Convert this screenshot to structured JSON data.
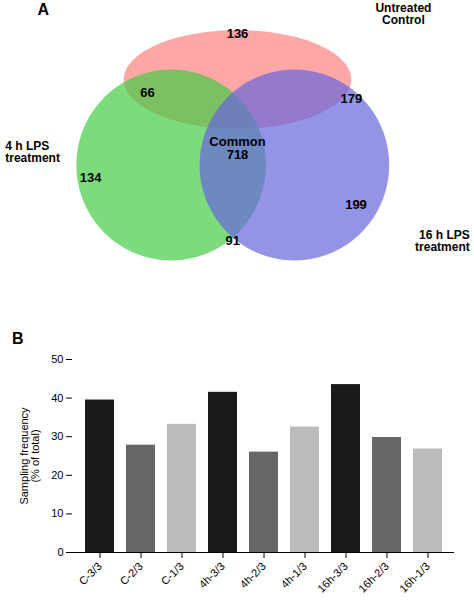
{
  "chart_data": [
    {
      "type": "venn",
      "title": "A",
      "series": [
        {
          "name": "Untreated\nControl",
          "color": "#FF8080"
        },
        {
          "name": "4 h LPS\ntreatment",
          "color": "#44CC44"
        },
        {
          "name": "16 h LPS\ntreatment",
          "color": "#6666DD"
        }
      ],
      "regions": [
        {
          "sets": [
            "Untreated\nControl"
          ],
          "value": 136
        },
        {
          "sets": [
            "Untreated\nControl",
            "4 h LPS\ntreatment"
          ],
          "value": 66
        },
        {
          "sets": [
            "Untreated\nControl",
            "16 h LPS\ntreatment"
          ],
          "value": 179
        },
        {
          "sets": [
            "4 h LPS\ntreatment"
          ],
          "value": 134
        },
        {
          "sets": [
            "Untreated\nControl",
            "4 h LPS\ntreatment",
            "16 h LPS\ntreatment"
          ],
          "label": "Common",
          "value": 718
        },
        {
          "sets": [
            "16 h LPS\ntreatment"
          ],
          "value": 199
        },
        {
          "sets": [
            "4 h LPS\ntreatment",
            "16 h LPS\ntreatment"
          ],
          "value": 91
        }
      ]
    },
    {
      "type": "bar",
      "title": "B",
      "categories": [
        "C-3/3",
        "C-2/3",
        "C-1/3",
        "4h-3/3",
        "4h-2/3",
        "4h-1/3",
        "16h-3/3",
        "16h-2/3",
        "16h-1/3"
      ],
      "values": [
        39.5,
        27.8,
        33.2,
        41.5,
        26.0,
        32.5,
        43.5,
        29.8,
        26.8
      ],
      "colors": [
        "#1a1a1a",
        "#666666",
        "#bbbbbb",
        "#1a1a1a",
        "#666666",
        "#bbbbbb",
        "#1a1a1a",
        "#666666",
        "#bbbbbb"
      ],
      "ylabel": "Sampling frequency\n(% of total)",
      "ylim": [
        0,
        50
      ],
      "yticks": [
        0,
        10,
        20,
        30,
        40,
        50
      ]
    }
  ]
}
